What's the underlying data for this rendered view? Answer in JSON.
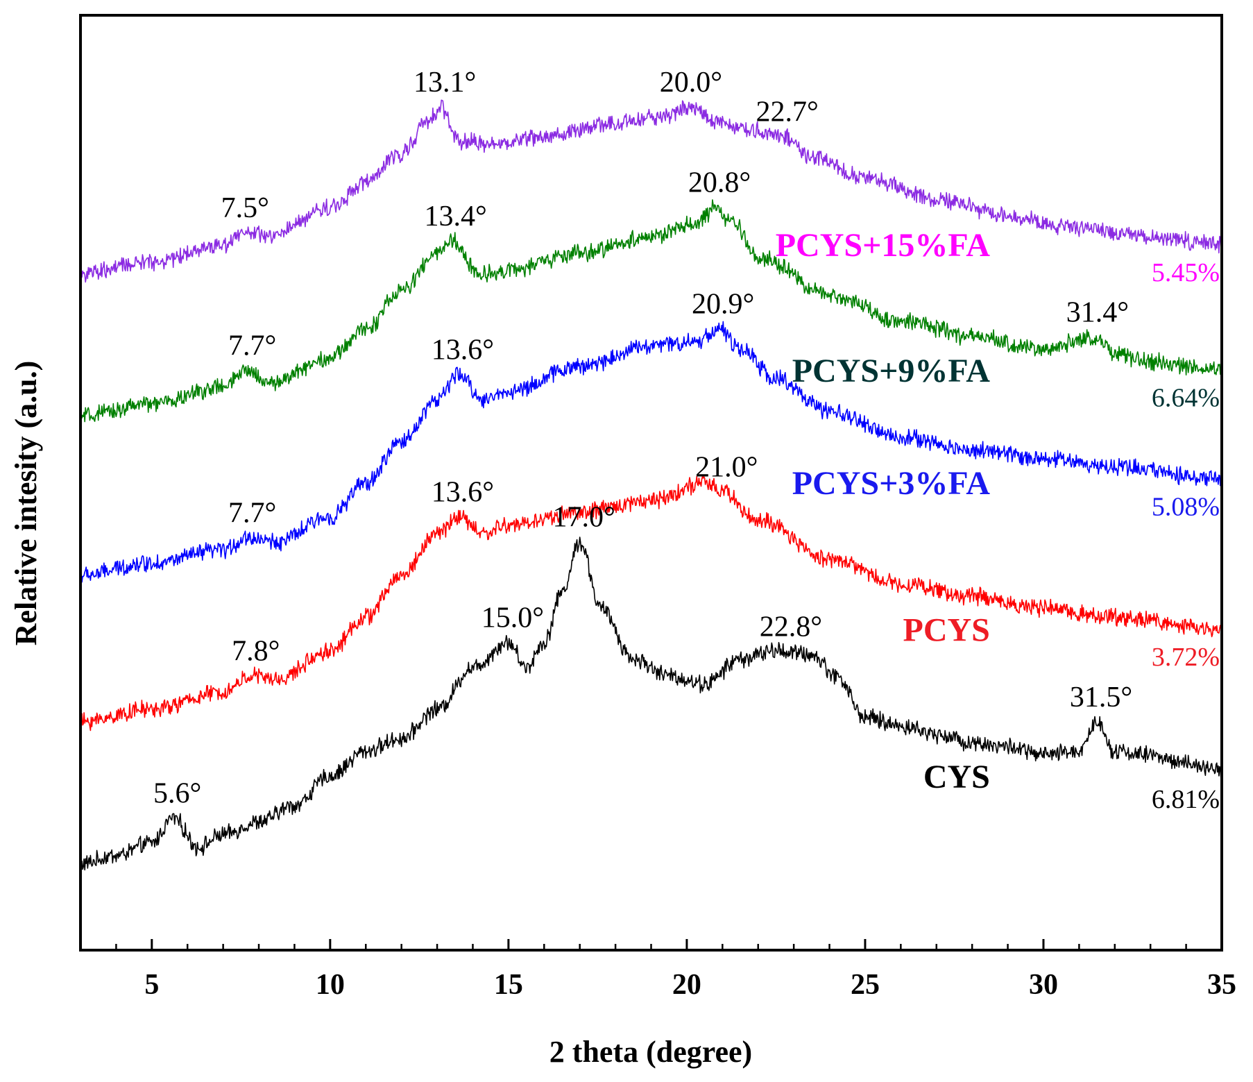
{
  "chart_data": {
    "type": "line",
    "title": "",
    "xlabel": "2 theta (degree)",
    "ylabel": "Relative intesity (a.u.)",
    "xlim": [
      3,
      35
    ],
    "ylim": [
      0,
      100
    ],
    "x_ticks": [
      5,
      10,
      15,
      20,
      25,
      30,
      35
    ],
    "x_tick_labels": [
      "5",
      "10",
      "15",
      "20",
      "25",
      "30",
      "35"
    ],
    "y_ticks_visible": false,
    "grid": false,
    "legend": "inline labels on the right side of each curve",
    "series": [
      {
        "id": "cys",
        "name": "CYS",
        "percentage": "6.81%",
        "color": "#000000",
        "label_color": "#000000",
        "profile": [
          [
            3,
            7.5
          ],
          [
            4,
            8.5
          ],
          [
            5,
            10
          ],
          [
            5.6,
            13
          ],
          [
            6.3,
            9.5
          ],
          [
            7,
            11
          ],
          [
            8,
            12.5
          ],
          [
            9,
            14.5
          ],
          [
            10,
            18
          ],
          [
            11,
            21
          ],
          [
            12,
            22.5
          ],
          [
            13,
            26
          ],
          [
            14,
            31
          ],
          [
            15,
            34
          ],
          [
            15.5,
            31
          ],
          [
            16,
            34
          ],
          [
            16.5,
            40
          ],
          [
            17,
            46
          ],
          [
            17.6,
            38
          ],
          [
            18.5,
            32
          ],
          [
            19.5,
            30
          ],
          [
            20.5,
            29
          ],
          [
            21.5,
            32
          ],
          [
            22.5,
            33
          ],
          [
            23.5,
            32.5
          ],
          [
            24.2,
            30
          ],
          [
            25,
            25
          ],
          [
            26,
            24
          ],
          [
            27,
            23
          ],
          [
            28,
            22
          ],
          [
            29,
            21.5
          ],
          [
            30,
            20.5
          ],
          [
            31,
            21
          ],
          [
            31.5,
            24.5
          ],
          [
            32,
            21
          ],
          [
            33,
            20.5
          ],
          [
            34,
            19.5
          ],
          [
            35,
            18.5
          ]
        ],
        "peaks": [
          {
            "x": 5.6,
            "label": "5.6°"
          },
          {
            "x": 15.0,
            "label": "15.0°"
          },
          {
            "x": 17.0,
            "label": "17.0°"
          },
          {
            "x": 22.8,
            "label": "22.8°"
          },
          {
            "x": 31.5,
            "label": "31.5°"
          }
        ]
      },
      {
        "id": "pcys",
        "name": "PCYS",
        "percentage": "3.72%",
        "color": "#ff0000",
        "label_color": "#ee1c25",
        "profile": [
          [
            3,
            24.5
          ],
          [
            5,
            26
          ],
          [
            7,
            28
          ],
          [
            7.8,
            30
          ],
          [
            8.5,
            29.5
          ],
          [
            10,
            33
          ],
          [
            11,
            37
          ],
          [
            12,
            42
          ],
          [
            13,
            47
          ],
          [
            13.6,
            49
          ],
          [
            14.3,
            47
          ],
          [
            15,
            48
          ],
          [
            17,
            49.5
          ],
          [
            19,
            51
          ],
          [
            20.5,
            53
          ],
          [
            21,
            52
          ],
          [
            22,
            48.5
          ],
          [
            24,
            44
          ],
          [
            26,
            41
          ],
          [
            28,
            39.5
          ],
          [
            30,
            38
          ],
          [
            32,
            37
          ],
          [
            35,
            35.5
          ]
        ],
        "peaks": [
          {
            "x": 7.8,
            "label": "7.8°"
          },
          {
            "x": 13.6,
            "label": "13.6°"
          },
          {
            "x": 21.0,
            "label": "21.0°"
          }
        ]
      },
      {
        "id": "pcys3",
        "name": "PCYS+3%FA",
        "percentage": "5.08%",
        "color": "#0000ff",
        "label_color": "#1a1aee",
        "profile": [
          [
            3,
            42
          ],
          [
            5,
            43.5
          ],
          [
            7,
            45
          ],
          [
            7.7,
            46.5
          ],
          [
            8.5,
            46
          ],
          [
            10,
            49
          ],
          [
            11,
            53
          ],
          [
            12,
            58
          ],
          [
            13,
            63
          ],
          [
            13.6,
            66
          ],
          [
            14.3,
            63
          ],
          [
            15,
            64
          ],
          [
            17,
            67
          ],
          [
            19,
            69.5
          ],
          [
            20.3,
            70
          ],
          [
            20.9,
            71.5
          ],
          [
            21.5,
            69
          ],
          [
            22.5,
            65.5
          ],
          [
            24,
            61.5
          ],
          [
            26,
            58.5
          ],
          [
            28,
            57
          ],
          [
            30,
            56
          ],
          [
            32,
            55
          ],
          [
            35,
            53.5
          ]
        ],
        "peaks": [
          {
            "x": 7.7,
            "label": "7.7°"
          },
          {
            "x": 13.6,
            "label": "13.6°"
          },
          {
            "x": 20.9,
            "label": "20.9°"
          }
        ]
      },
      {
        "id": "pcys9",
        "name": "PCYS+9%FA",
        "percentage": "6.64%",
        "color": "#008000",
        "label_color": "#003333",
        "profile": [
          [
            3,
            61
          ],
          [
            5,
            62.5
          ],
          [
            7,
            64.5
          ],
          [
            7.7,
            66.5
          ],
          [
            8.3,
            65
          ],
          [
            10,
            68
          ],
          [
            11,
            71.5
          ],
          [
            12,
            76
          ],
          [
            13,
            80.5
          ],
          [
            13.4,
            82
          ],
          [
            14.2,
            78
          ],
          [
            15,
            78.5
          ],
          [
            17,
            80.5
          ],
          [
            19,
            82.5
          ],
          [
            20.3,
            84
          ],
          [
            20.8,
            86
          ],
          [
            21.3,
            84
          ],
          [
            22,
            80
          ],
          [
            24,
            75.5
          ],
          [
            26,
            72.5
          ],
          [
            28,
            70.5
          ],
          [
            30,
            69
          ],
          [
            31.4,
            70.5
          ],
          [
            32,
            68.5
          ],
          [
            33,
            67.5
          ],
          [
            35,
            66.5
          ]
        ],
        "peaks": [
          {
            "x": 7.7,
            "label": "7.7°"
          },
          {
            "x": 13.4,
            "label": "13.4°"
          },
          {
            "x": 20.8,
            "label": "20.8°"
          },
          {
            "x": 31.4,
            "label": "31.4°"
          }
        ]
      },
      {
        "id": "pcys15",
        "name": "PCYS+15%FA",
        "percentage": "5.45%",
        "color": "#8b2be2",
        "label_color": "#ff00ff",
        "profile": [
          [
            3,
            78
          ],
          [
            5,
            79.5
          ],
          [
            7,
            81.5
          ],
          [
            7.5,
            83
          ],
          [
            8.3,
            82.5
          ],
          [
            10,
            86
          ],
          [
            11,
            89
          ],
          [
            12,
            92.5
          ],
          [
            12.7,
            96
          ],
          [
            13.1,
            98
          ],
          [
            13.6,
            94
          ],
          [
            14.5,
            93.5
          ],
          [
            16,
            94.5
          ],
          [
            18,
            96
          ],
          [
            19.5,
            97
          ],
          [
            20,
            98
          ],
          [
            20.8,
            96.5
          ],
          [
            21.5,
            95.5
          ],
          [
            22.7,
            94.5
          ],
          [
            23.5,
            92
          ],
          [
            25,
            89.5
          ],
          [
            27,
            87
          ],
          [
            29,
            85
          ],
          [
            31,
            83.5
          ],
          [
            33,
            82.5
          ],
          [
            35,
            81.5
          ]
        ],
        "peaks": [
          {
            "x": 7.5,
            "label": "7.5°"
          },
          {
            "x": 13.1,
            "label": "13.1°"
          },
          {
            "x": 20.0,
            "label": "20.0°"
          },
          {
            "x": 22.7,
            "label": "22.7°"
          }
        ]
      }
    ]
  }
}
